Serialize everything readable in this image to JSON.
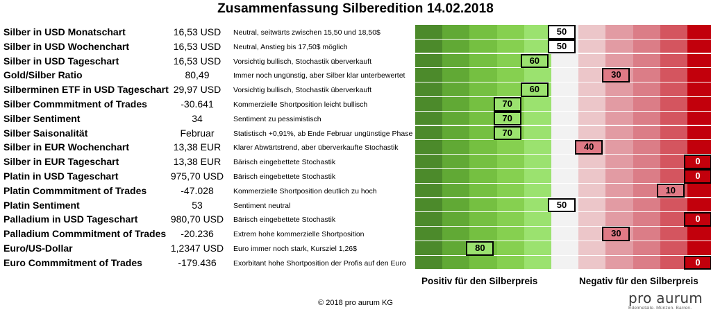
{
  "header": {
    "title": "Zusammenfassung Silberedition 14.02.2018"
  },
  "scale": {
    "colors": [
      "#4c8a2b",
      "#61a935",
      "#75c041",
      "#86d050",
      "#9be26f",
      "#f2f2f2",
      "#ecc6c9",
      "#e29ba3",
      "#db7d87",
      "#d4555f",
      "#c2000c"
    ],
    "positive_label": "Positiv für den Silberpreis",
    "negative_label": "Negativ für den Silberpreis"
  },
  "chart_data": {
    "type": "table",
    "title": "Zusammenfassung Silberedition 14.02.2018",
    "score_range": [
      100,
      0
    ],
    "rows": [
      {
        "label": "Silber in USD Monatschart",
        "value": "16,53 USD",
        "comment": "Neutral, seitwärts zwischen 15,50 und 18,50$",
        "score": 50
      },
      {
        "label": "Silber in USD Wochenchart",
        "value": "16,53 USD",
        "comment": "Neutral, Anstieg bis 17,50$ möglich",
        "score": 50
      },
      {
        "label": "Silber in USD Tageschart",
        "value": "16,53 USD",
        "comment": "Vorsichtig bullisch, Stochastik überverkauft",
        "score": 60
      },
      {
        "label": "Gold/Silber Ratio",
        "value": "80,49",
        "comment": "Immer noch ungünstig, aber Silber klar unterbewertet",
        "score": 30
      },
      {
        "label": "Silberminen ETF in USD Tageschart",
        "value": "29,97 USD",
        "comment": "Vorsichtig bullisch, Stochastik überverkauft",
        "score": 60
      },
      {
        "label": "Silber Commmitment of Trades",
        "value": "-30.641",
        "comment": "Kommerzielle Shortposition leicht bullisch",
        "score": 70
      },
      {
        "label": "Silber Sentiment",
        "value": "34",
        "comment": "Sentiment zu pessimistisch",
        "score": 70
      },
      {
        "label": "Silber Saisonalität",
        "value": "Februar",
        "comment": "Statistisch +0,91%, ab Ende Februar ungünstige Phase",
        "score": 70
      },
      {
        "label": "Silber in EUR Wochenchart",
        "value": "13,38 EUR",
        "comment": "Klarer Abwärtstrend, aber überverkaufte Stochastik",
        "score": 40
      },
      {
        "label": "Silber in EUR Tageschart",
        "value": "13,38 EUR",
        "comment": "Bärisch eingebettete Stochastik",
        "score": 0
      },
      {
        "label": "Platin in USD Tageschart",
        "value": "975,70 USD",
        "comment": "Bärisch eingebettete Stochastik",
        "score": 0
      },
      {
        "label": "Platin Commmitment of Trades",
        "value": "-47.028",
        "comment": "Kommerzielle Shortposition deutlich zu hoch",
        "score": 10
      },
      {
        "label": "Platin Sentiment",
        "value": "53",
        "comment": "Sentiment neutral",
        "score": 50
      },
      {
        "label": "Palladium in USD Tageschart",
        "value": "980,70 USD",
        "comment": "Bärisch eingebettete Stochastik",
        "score": 0
      },
      {
        "label": "Palladium Commmitment of Trades",
        "value": "-20.236",
        "comment": "Extrem hohe kommerzielle Shortposition",
        "score": 30
      },
      {
        "label": "Euro/US-Dollar",
        "value": "1,2347 USD",
        "comment": "Euro immer noch stark, Kursziel 1,26$",
        "score": 80
      },
      {
        "label": "Euro Commmitment of Trades",
        "value": "-179.436",
        "comment": "Exorbitant hohe Shortposition der Profis auf den Euro",
        "score": 0
      }
    ]
  },
  "footer": {
    "copyright": "© 2018 pro aurum KG",
    "logo_text": "pro aurum",
    "logo_tagline": "Edelmetalle. Münzen. Barren."
  }
}
